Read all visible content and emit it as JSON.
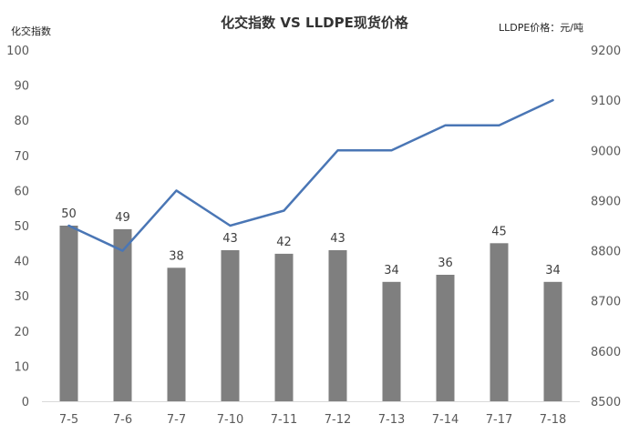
{
  "chart_data": {
    "type": "bar+line",
    "title": "化交指数 VS LLDPE现货价格",
    "ylabel_left": "化交指数",
    "ylabel_right": "LLDPE价格：元/吨",
    "categories": [
      "7-5",
      "7-6",
      "7-7",
      "7-10",
      "7-11",
      "7-12",
      "7-13",
      "7-14",
      "7-17",
      "7-18"
    ],
    "series": [
      {
        "type": "bar",
        "axis": "left",
        "values": [
          50,
          49,
          38,
          43,
          42,
          43,
          34,
          36,
          45,
          34
        ],
        "color": "#7f7f7f"
      },
      {
        "type": "line",
        "axis": "right",
        "values": [
          8850,
          8800,
          8920,
          8850,
          8880,
          9000,
          9000,
          9050,
          9050,
          9100
        ],
        "color": "#4a76b5"
      }
    ],
    "ylim_left": [
      0,
      100
    ],
    "yticks_left": [
      0,
      10,
      20,
      30,
      40,
      50,
      60,
      70,
      80,
      90,
      100
    ],
    "ylim_right": [
      8500,
      9200
    ],
    "yticks_right": [
      8500,
      8600,
      8700,
      8800,
      8900,
      9000,
      9100,
      9200
    ],
    "grid": false,
    "legend": "none"
  }
}
